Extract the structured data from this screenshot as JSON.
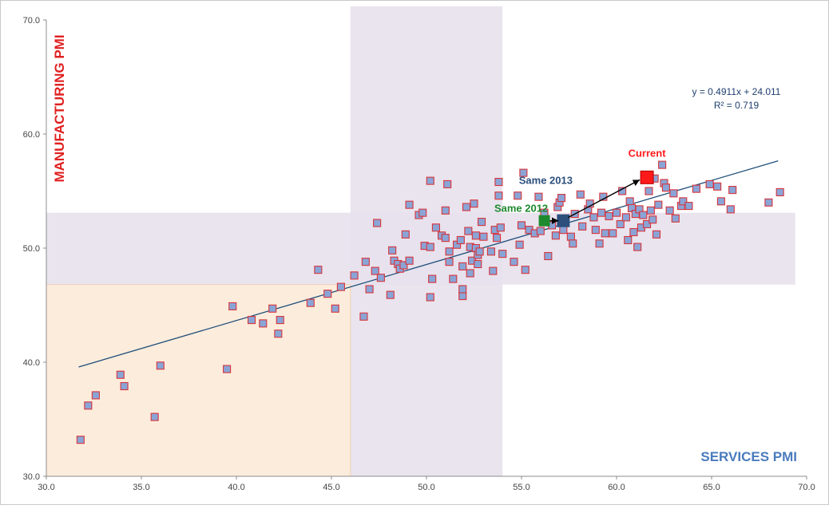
{
  "chart_data": {
    "type": "scatter",
    "title": "",
    "xlabel": "SERVICES PMI",
    "ylabel": "MANUFACTURING PMI",
    "xlim": [
      30,
      70
    ],
    "ylim": [
      30,
      70
    ],
    "x_ticks": [
      "30.0",
      "35.0",
      "40.0",
      "45.0",
      "50.0",
      "55.0",
      "60.0",
      "65.0",
      "70.0"
    ],
    "y_ticks": [
      "30.0",
      "40.0",
      "50.0",
      "60.0",
      "70.0"
    ],
    "colors": {
      "point_fill": "#8aa4d6",
      "point_stroke": "#d9343a",
      "trend": "#1f4e79",
      "band": "#e7e1ec",
      "low_zone": "#fcecdc",
      "manufacturing_label": "#e02020",
      "services_label": "#4a7bbd",
      "current": "#ff1a1a",
      "same_2013": "#2c4f7c",
      "same_2012": "#1e8a2e",
      "equation": "#1f3f6f"
    },
    "regions": [
      {
        "name": "services-neutral-band",
        "x": [
          46,
          54
        ],
        "y": [
          30,
          71.2
        ]
      },
      {
        "name": "manufacturing-neutral-band",
        "x": [
          30,
          69.4
        ],
        "y": [
          46.8,
          53.1
        ]
      },
      {
        "name": "contraction-zone",
        "x": [
          30,
          46
        ],
        "y": [
          30,
          46.8
        ]
      }
    ],
    "trendline": {
      "equation": "y = 0.4911x + 24.011",
      "r_squared": "R² = 0.719",
      "slope": 0.4911,
      "intercept": 24.011,
      "x_range": [
        31.7,
        68.5
      ]
    },
    "highlights": [
      {
        "label": "Current",
        "x": 61.6,
        "y": 56.2,
        "color": "#ff1a1a"
      },
      {
        "label": "Same 2013",
        "x": 57.2,
        "y": 52.4,
        "color": "#2c4f7c"
      },
      {
        "label": "Same 2012",
        "x": 56.2,
        "y": 52.4,
        "color": "#1e8a2e"
      }
    ],
    "points": [
      [
        31.8,
        33.2
      ],
      [
        32.2,
        36.2
      ],
      [
        32.6,
        37.1
      ],
      [
        33.9,
        38.9
      ],
      [
        34.1,
        37.9
      ],
      [
        35.7,
        35.2
      ],
      [
        36.0,
        39.7
      ],
      [
        39.5,
        39.4
      ],
      [
        39.8,
        44.9
      ],
      [
        40.8,
        43.7
      ],
      [
        41.4,
        43.4
      ],
      [
        41.9,
        44.7
      ],
      [
        42.2,
        42.5
      ],
      [
        42.3,
        43.7
      ],
      [
        43.9,
        45.2
      ],
      [
        44.3,
        48.1
      ],
      [
        44.8,
        46.0
      ],
      [
        45.2,
        44.7
      ],
      [
        45.5,
        46.6
      ],
      [
        46.2,
        47.6
      ],
      [
        46.7,
        44.0
      ],
      [
        46.8,
        48.8
      ],
      [
        47.0,
        46.4
      ],
      [
        47.3,
        48.0
      ],
      [
        47.4,
        52.2
      ],
      [
        47.6,
        47.4
      ],
      [
        48.1,
        45.9
      ],
      [
        48.2,
        49.8
      ],
      [
        48.3,
        48.9
      ],
      [
        48.5,
        48.6
      ],
      [
        48.6,
        48.2
      ],
      [
        48.8,
        48.5
      ],
      [
        48.9,
        51.2
      ],
      [
        49.1,
        48.9
      ],
      [
        49.1,
        53.8
      ],
      [
        49.6,
        52.9
      ],
      [
        49.8,
        53.1
      ],
      [
        49.9,
        50.2
      ],
      [
        50.2,
        50.1
      ],
      [
        50.2,
        45.7
      ],
      [
        50.2,
        55.9
      ],
      [
        50.3,
        47.3
      ],
      [
        50.5,
        51.8
      ],
      [
        50.8,
        51.1
      ],
      [
        51.0,
        50.9
      ],
      [
        51.0,
        53.3
      ],
      [
        51.1,
        55.6
      ],
      [
        51.2,
        49.7
      ],
      [
        51.2,
        48.8
      ],
      [
        51.4,
        47.3
      ],
      [
        51.6,
        50.3
      ],
      [
        51.8,
        50.7
      ],
      [
        51.9,
        48.4
      ],
      [
        51.9,
        45.8
      ],
      [
        51.9,
        46.4
      ],
      [
        52.1,
        53.6
      ],
      [
        52.2,
        51.5
      ],
      [
        52.3,
        50.1
      ],
      [
        52.3,
        47.8
      ],
      [
        52.4,
        48.9
      ],
      [
        52.5,
        53.9
      ],
      [
        52.6,
        51.1
      ],
      [
        52.6,
        50.0
      ],
      [
        52.7,
        49.4
      ],
      [
        52.7,
        48.6
      ],
      [
        52.8,
        49.7
      ],
      [
        52.9,
        52.3
      ],
      [
        53.0,
        51.0
      ],
      [
        53.4,
        49.7
      ],
      [
        53.5,
        48.0
      ],
      [
        53.6,
        51.6
      ],
      [
        53.7,
        50.9
      ],
      [
        53.8,
        54.6
      ],
      [
        53.8,
        55.8
      ],
      [
        53.9,
        51.8
      ],
      [
        54.0,
        49.5
      ],
      [
        54.6,
        48.8
      ],
      [
        54.8,
        54.6
      ],
      [
        54.9,
        50.3
      ],
      [
        55.0,
        52.0
      ],
      [
        55.1,
        56.6
      ],
      [
        55.2,
        48.1
      ],
      [
        55.4,
        51.6
      ],
      [
        55.7,
        51.3
      ],
      [
        55.9,
        54.5
      ],
      [
        56.0,
        51.5
      ],
      [
        56.2,
        53.1
      ],
      [
        56.4,
        49.3
      ],
      [
        56.6,
        52.0
      ],
      [
        56.8,
        51.1
      ],
      [
        56.9,
        53.6
      ],
      [
        57.0,
        54.0
      ],
      [
        57.1,
        54.4
      ],
      [
        57.2,
        51.6
      ],
      [
        57.3,
        52.6
      ],
      [
        57.6,
        51.0
      ],
      [
        57.7,
        50.4
      ],
      [
        57.8,
        53.0
      ],
      [
        58.1,
        54.7
      ],
      [
        58.2,
        51.9
      ],
      [
        58.5,
        53.4
      ],
      [
        58.6,
        53.9
      ],
      [
        58.8,
        52.7
      ],
      [
        58.9,
        51.6
      ],
      [
        59.1,
        50.4
      ],
      [
        59.2,
        53.1
      ],
      [
        59.3,
        54.5
      ],
      [
        59.4,
        51.3
      ],
      [
        59.6,
        52.8
      ],
      [
        59.8,
        51.3
      ],
      [
        60.0,
        53.1
      ],
      [
        60.2,
        52.1
      ],
      [
        60.3,
        55.0
      ],
      [
        60.5,
        52.7
      ],
      [
        60.6,
        50.7
      ],
      [
        60.7,
        54.1
      ],
      [
        60.8,
        53.5
      ],
      [
        60.9,
        51.4
      ],
      [
        61.0,
        53.0
      ],
      [
        61.1,
        50.1
      ],
      [
        61.2,
        53.4
      ],
      [
        61.3,
        51.8
      ],
      [
        61.4,
        52.9
      ],
      [
        61.5,
        56.4
      ],
      [
        61.6,
        52.1
      ],
      [
        61.7,
        55.0
      ],
      [
        61.8,
        53.3
      ],
      [
        61.9,
        52.5
      ],
      [
        62.0,
        56.1
      ],
      [
        62.1,
        51.2
      ],
      [
        62.2,
        53.8
      ],
      [
        62.4,
        57.3
      ],
      [
        62.5,
        55.7
      ],
      [
        62.6,
        55.3
      ],
      [
        62.8,
        53.3
      ],
      [
        63.0,
        54.8
      ],
      [
        63.1,
        52.6
      ],
      [
        63.4,
        53.7
      ],
      [
        63.5,
        54.1
      ],
      [
        63.8,
        53.7
      ],
      [
        64.2,
        55.2
      ],
      [
        64.9,
        55.6
      ],
      [
        65.3,
        55.4
      ],
      [
        65.5,
        54.1
      ],
      [
        66.0,
        53.4
      ],
      [
        66.1,
        55.1
      ],
      [
        68.0,
        54.0
      ],
      [
        68.6,
        54.9
      ]
    ]
  }
}
